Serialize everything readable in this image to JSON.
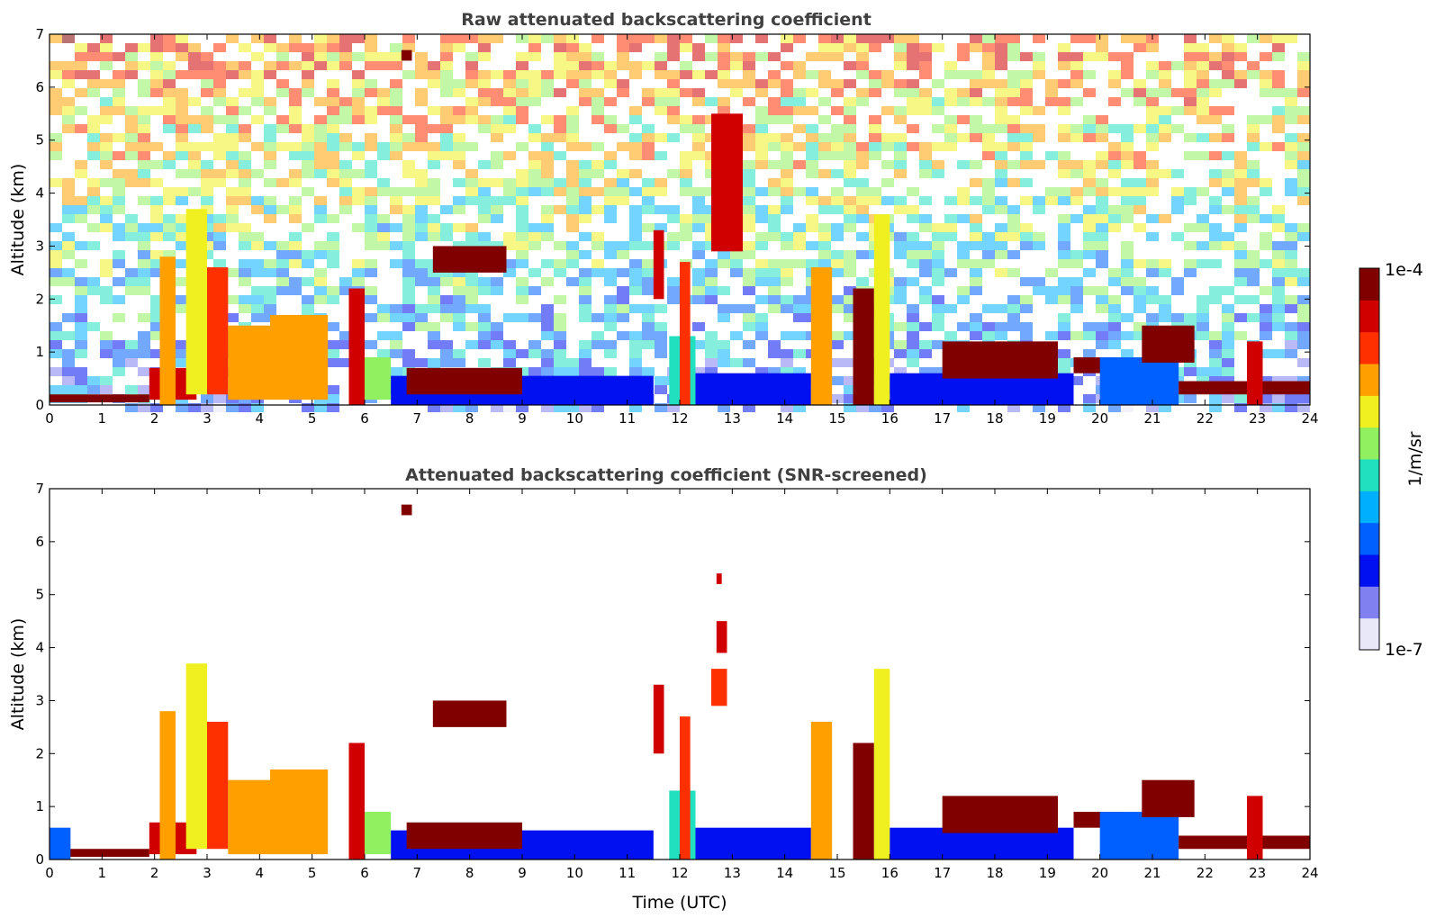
{
  "chart_data": [
    {
      "type": "heatmap",
      "title": "Raw attenuated backscattering coefficient",
      "xlabel": "",
      "ylabel": "Altitude (km)",
      "xlim": [
        0,
        24
      ],
      "ylim": [
        0,
        7
      ],
      "x_ticks": [
        0,
        1,
        2,
        3,
        4,
        5,
        6,
        7,
        8,
        9,
        10,
        11,
        12,
        13,
        14,
        15,
        16,
        17,
        18,
        19,
        20,
        21,
        22,
        23,
        24
      ],
      "y_ticks": [
        0,
        1,
        2,
        3,
        4,
        5,
        6,
        7
      ],
      "noise": {
        "enabled": true,
        "density_low": 0.55,
        "density_high": 0.95
      },
      "features": [
        {
          "x0": 0.0,
          "x1": 1.9,
          "y0": 0.05,
          "y1": 0.2,
          "level": 0.97
        },
        {
          "x0": 1.9,
          "x1": 2.8,
          "y0": 0.1,
          "y1": 0.7,
          "level": 0.85
        },
        {
          "x0": 2.1,
          "x1": 2.4,
          "y0": 0.0,
          "y1": 2.8,
          "level": 0.7
        },
        {
          "x0": 2.6,
          "x1": 3.0,
          "y0": 0.2,
          "y1": 3.7,
          "level": 0.62
        },
        {
          "x0": 3.0,
          "x1": 3.4,
          "y0": 0.2,
          "y1": 2.6,
          "level": 0.75
        },
        {
          "x0": 3.4,
          "x1": 4.2,
          "y0": 0.1,
          "y1": 1.5,
          "level": 0.7
        },
        {
          "x0": 4.2,
          "x1": 5.3,
          "y0": 0.1,
          "y1": 1.7,
          "level": 0.68
        },
        {
          "x0": 5.7,
          "x1": 6.0,
          "y0": 0.0,
          "y1": 2.2,
          "level": 0.9
        },
        {
          "x0": 6.0,
          "x1": 6.5,
          "y0": 0.1,
          "y1": 0.9,
          "level": 0.55
        },
        {
          "x0": 6.5,
          "x1": 11.5,
          "y0": 0.0,
          "y1": 0.55,
          "level": 0.2
        },
        {
          "x0": 6.8,
          "x1": 9.0,
          "y0": 0.2,
          "y1": 0.7,
          "level": 0.95
        },
        {
          "x0": 7.3,
          "x1": 8.7,
          "y0": 2.5,
          "y1": 3.0,
          "level": 0.98
        },
        {
          "x0": 6.7,
          "x1": 6.9,
          "y0": 6.5,
          "y1": 6.7,
          "level": 0.98
        },
        {
          "x0": 11.5,
          "x1": 11.7,
          "y0": 2.0,
          "y1": 3.3,
          "level": 0.9
        },
        {
          "x0": 11.8,
          "x1": 12.3,
          "y0": 0.0,
          "y1": 1.3,
          "level": 0.45
        },
        {
          "x0": 12.0,
          "x1": 12.2,
          "y0": 0.0,
          "y1": 2.7,
          "level": 0.82
        },
        {
          "x0": 12.3,
          "x1": 14.5,
          "y0": 0.0,
          "y1": 0.6,
          "level": 0.18
        },
        {
          "x0": 12.6,
          "x1": 13.2,
          "y0": 2.9,
          "y1": 5.5,
          "level": 0.88
        },
        {
          "x0": 14.5,
          "x1": 14.9,
          "y0": 0.0,
          "y1": 2.6,
          "level": 0.72
        },
        {
          "x0": 15.3,
          "x1": 15.7,
          "y0": 0.0,
          "y1": 2.2,
          "level": 0.92
        },
        {
          "x0": 15.7,
          "x1": 16.0,
          "y0": 0.0,
          "y1": 3.6,
          "level": 0.6
        },
        {
          "x0": 16.0,
          "x1": 19.5,
          "y0": 0.0,
          "y1": 0.6,
          "level": 0.2
        },
        {
          "x0": 17.0,
          "x1": 19.2,
          "y0": 0.5,
          "y1": 1.2,
          "level": 0.97
        },
        {
          "x0": 19.5,
          "x1": 20.5,
          "y0": 0.6,
          "y1": 0.9,
          "level": 0.97
        },
        {
          "x0": 20.0,
          "x1": 21.5,
          "y0": 0.0,
          "y1": 0.9,
          "level": 0.3
        },
        {
          "x0": 20.8,
          "x1": 21.8,
          "y0": 0.8,
          "y1": 1.5,
          "level": 0.96
        },
        {
          "x0": 21.5,
          "x1": 24.0,
          "y0": 0.2,
          "y1": 0.45,
          "level": 0.97
        },
        {
          "x0": 22.8,
          "x1": 23.1,
          "y0": 0.0,
          "y1": 1.2,
          "level": 0.85
        }
      ]
    },
    {
      "type": "heatmap",
      "title": "Attenuated backscattering coefficient (SNR-screened)",
      "xlabel": "Time (UTC)",
      "ylabel": "Altitude (km)",
      "xlim": [
        0,
        24
      ],
      "ylim": [
        0,
        7
      ],
      "x_ticks": [
        0,
        1,
        2,
        3,
        4,
        5,
        6,
        7,
        8,
        9,
        10,
        11,
        12,
        13,
        14,
        15,
        16,
        17,
        18,
        19,
        20,
        21,
        22,
        23,
        24
      ],
      "y_ticks": [
        0,
        1,
        2,
        3,
        4,
        5,
        6,
        7
      ],
      "noise": {
        "enabled": false
      },
      "features": [
        {
          "x0": 0.0,
          "x1": 1.9,
          "y0": 0.05,
          "y1": 0.2,
          "level": 0.97
        },
        {
          "x0": 0.0,
          "x1": 0.4,
          "y0": 0.0,
          "y1": 0.6,
          "level": 0.3
        },
        {
          "x0": 1.9,
          "x1": 2.8,
          "y0": 0.1,
          "y1": 0.7,
          "level": 0.85
        },
        {
          "x0": 2.1,
          "x1": 2.4,
          "y0": 0.0,
          "y1": 2.8,
          "level": 0.7
        },
        {
          "x0": 2.6,
          "x1": 3.0,
          "y0": 0.2,
          "y1": 3.7,
          "level": 0.62
        },
        {
          "x0": 3.0,
          "x1": 3.4,
          "y0": 0.2,
          "y1": 2.6,
          "level": 0.75
        },
        {
          "x0": 3.4,
          "x1": 4.2,
          "y0": 0.1,
          "y1": 1.5,
          "level": 0.7
        },
        {
          "x0": 4.2,
          "x1": 5.3,
          "y0": 0.1,
          "y1": 1.7,
          "level": 0.68
        },
        {
          "x0": 5.7,
          "x1": 6.0,
          "y0": 0.0,
          "y1": 2.2,
          "level": 0.9
        },
        {
          "x0": 6.0,
          "x1": 6.5,
          "y0": 0.1,
          "y1": 0.9,
          "level": 0.55
        },
        {
          "x0": 6.5,
          "x1": 11.5,
          "y0": 0.0,
          "y1": 0.55,
          "level": 0.2
        },
        {
          "x0": 6.8,
          "x1": 9.0,
          "y0": 0.2,
          "y1": 0.7,
          "level": 0.95
        },
        {
          "x0": 7.3,
          "x1": 8.7,
          "y0": 2.5,
          "y1": 3.0,
          "level": 0.98
        },
        {
          "x0": 6.7,
          "x1": 6.9,
          "y0": 6.5,
          "y1": 6.7,
          "level": 0.98
        },
        {
          "x0": 11.5,
          "x1": 11.7,
          "y0": 2.0,
          "y1": 3.3,
          "level": 0.9
        },
        {
          "x0": 11.8,
          "x1": 12.3,
          "y0": 0.0,
          "y1": 1.3,
          "level": 0.45
        },
        {
          "x0": 12.0,
          "x1": 12.2,
          "y0": 0.0,
          "y1": 2.7,
          "level": 0.82
        },
        {
          "x0": 12.3,
          "x1": 14.5,
          "y0": 0.0,
          "y1": 0.6,
          "level": 0.18
        },
        {
          "x0": 12.6,
          "x1": 12.9,
          "y0": 2.9,
          "y1": 3.6,
          "level": 0.75
        },
        {
          "x0": 12.7,
          "x1": 12.9,
          "y0": 3.9,
          "y1": 4.5,
          "level": 0.88
        },
        {
          "x0": 12.7,
          "x1": 12.8,
          "y0": 5.2,
          "y1": 5.4,
          "level": 0.88
        },
        {
          "x0": 14.5,
          "x1": 14.9,
          "y0": 0.0,
          "y1": 2.6,
          "level": 0.72
        },
        {
          "x0": 15.3,
          "x1": 15.7,
          "y0": 0.0,
          "y1": 2.2,
          "level": 0.92
        },
        {
          "x0": 15.7,
          "x1": 16.0,
          "y0": 0.0,
          "y1": 3.6,
          "level": 0.6
        },
        {
          "x0": 16.0,
          "x1": 19.5,
          "y0": 0.0,
          "y1": 0.6,
          "level": 0.2
        },
        {
          "x0": 17.0,
          "x1": 19.2,
          "y0": 0.5,
          "y1": 1.2,
          "level": 0.97
        },
        {
          "x0": 19.5,
          "x1": 20.5,
          "y0": 0.6,
          "y1": 0.9,
          "level": 0.97
        },
        {
          "x0": 20.0,
          "x1": 21.5,
          "y0": 0.0,
          "y1": 0.9,
          "level": 0.3
        },
        {
          "x0": 20.8,
          "x1": 21.8,
          "y0": 0.8,
          "y1": 1.5,
          "level": 0.96
        },
        {
          "x0": 21.5,
          "x1": 24.0,
          "y0": 0.2,
          "y1": 0.45,
          "level": 0.97
        },
        {
          "x0": 22.8,
          "x1": 23.1,
          "y0": 0.0,
          "y1": 1.2,
          "level": 0.85
        }
      ]
    }
  ],
  "colorbar": {
    "label": "1/m/sr",
    "max_label": "1e-4",
    "min_label": "1e-7",
    "colors": [
      "#e8e8f8",
      "#8080f0",
      "#0010f0",
      "#0060ff",
      "#00b0ff",
      "#20e0c0",
      "#90f060",
      "#f0f020",
      "#ffa000",
      "#ff3000",
      "#d00000",
      "#800000"
    ]
  }
}
